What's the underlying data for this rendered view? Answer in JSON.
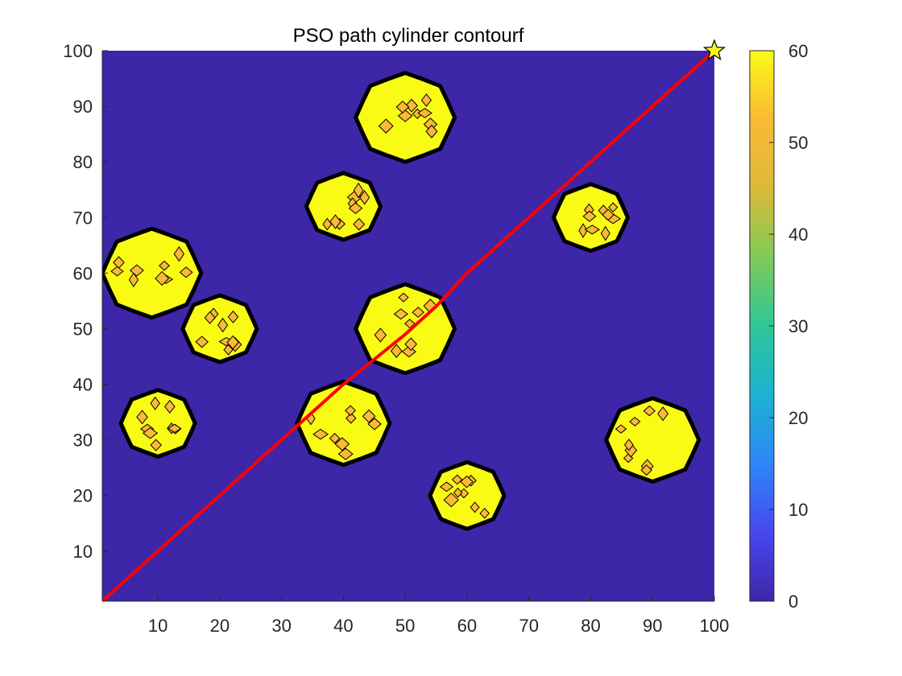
{
  "chart_data": {
    "type": "contourf",
    "title": "PSO path cylinder contourf",
    "xlabel": "",
    "ylabel": "",
    "xlim": [
      1,
      100
    ],
    "ylim": [
      1,
      100
    ],
    "x_ticks": [
      10,
      20,
      30,
      40,
      50,
      60,
      70,
      80,
      90,
      100
    ],
    "y_ticks": [
      10,
      20,
      30,
      40,
      50,
      60,
      70,
      80,
      90,
      100
    ],
    "background_value": 0,
    "background_color": "#3e26a8",
    "obstacle_fill_color": "#f9fb15",
    "obstacle_inner_color": "#fbb935",
    "obstacles": [
      {
        "x": 50,
        "y": 88,
        "r": 8,
        "height": 60
      },
      {
        "x": 40,
        "y": 72,
        "r": 6,
        "height": 60
      },
      {
        "x": 80,
        "y": 70,
        "r": 6,
        "height": 60
      },
      {
        "x": 9,
        "y": 60,
        "r": 8,
        "height": 60
      },
      {
        "x": 20,
        "y": 50,
        "r": 6,
        "height": 60
      },
      {
        "x": 50,
        "y": 50,
        "r": 8,
        "height": 60
      },
      {
        "x": 10,
        "y": 33,
        "r": 6,
        "height": 60
      },
      {
        "x": 40,
        "y": 33,
        "r": 7.5,
        "height": 60
      },
      {
        "x": 90,
        "y": 30,
        "r": 7.5,
        "height": 60
      },
      {
        "x": 60,
        "y": 20,
        "r": 6,
        "height": 60
      }
    ],
    "series": [
      {
        "type": "line",
        "color": "#ff0000",
        "x": [
          1,
          10,
          20,
          30,
          40,
          50,
          55,
          60,
          70,
          80,
          90,
          100
        ],
        "y": [
          1,
          10,
          20,
          30,
          40,
          49,
          54,
          60,
          70,
          80,
          90,
          100
        ]
      }
    ],
    "goal_marker": {
      "x": 100,
      "y": 100,
      "shape": "star",
      "color": "#f9fb15"
    },
    "colorbar": {
      "min": 0,
      "max": 60,
      "ticks": [
        0,
        10,
        20,
        30,
        40,
        50,
        60
      ],
      "colormap": "parula",
      "colors": [
        "#3e26a8",
        "#4748f0",
        "#2e87f7",
        "#1cb2d1",
        "#2ec797",
        "#80cb58",
        "#dbba38",
        "#fbb935",
        "#f9fb15"
      ]
    }
  }
}
